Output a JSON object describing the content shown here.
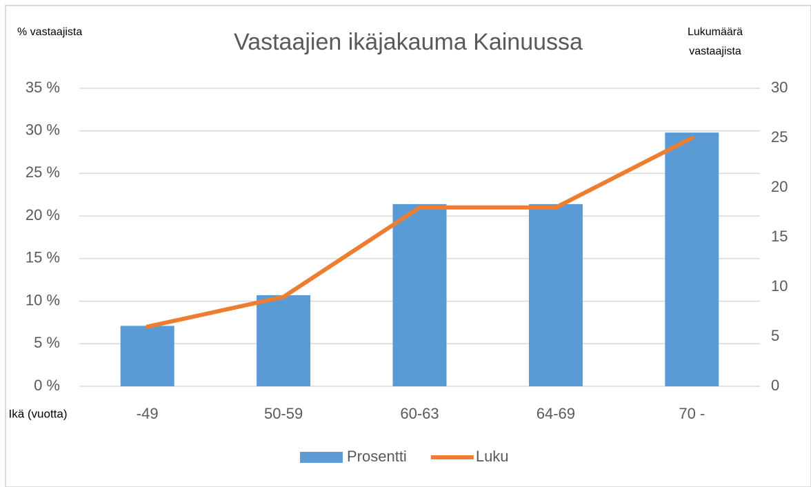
{
  "chart_data": {
    "type": "bar_line",
    "title": "Vastaajien ikäjakauma Kainuussa",
    "y_label": "% vastaajista",
    "y2_label": [
      "Lukumäärä",
      "vastaajista"
    ],
    "x_label": "Ikä (vuotta)",
    "categories": [
      "-49",
      "50-59",
      "60-63",
      "64-69",
      "70 -"
    ],
    "series": [
      {
        "name": "Prosentti",
        "type": "bar",
        "color": "#5b9bd5",
        "values": [
          7.1,
          10.7,
          21.4,
          21.4,
          29.8
        ]
      },
      {
        "name": "Luku",
        "type": "line",
        "axis": "y2",
        "color": "#ed7d31",
        "values": [
          6,
          9,
          18,
          18,
          25
        ]
      }
    ],
    "ylim": [
      0,
      35
    ],
    "yticks": [
      {
        "value": 0,
        "label": "0 %"
      },
      {
        "value": 5,
        "label": "5 %"
      },
      {
        "value": 10,
        "label": "10 %"
      },
      {
        "value": 15,
        "label": "15 %"
      },
      {
        "value": 20,
        "label": "20 %"
      },
      {
        "value": 25,
        "label": "25 %"
      },
      {
        "value": 30,
        "label": "30 %"
      },
      {
        "value": 35,
        "label": "35 %"
      }
    ],
    "y2lim": [
      0,
      30
    ],
    "y2ticks": [
      0,
      5,
      10,
      15,
      20,
      25,
      30
    ],
    "grid": true,
    "legend": "bottom"
  }
}
